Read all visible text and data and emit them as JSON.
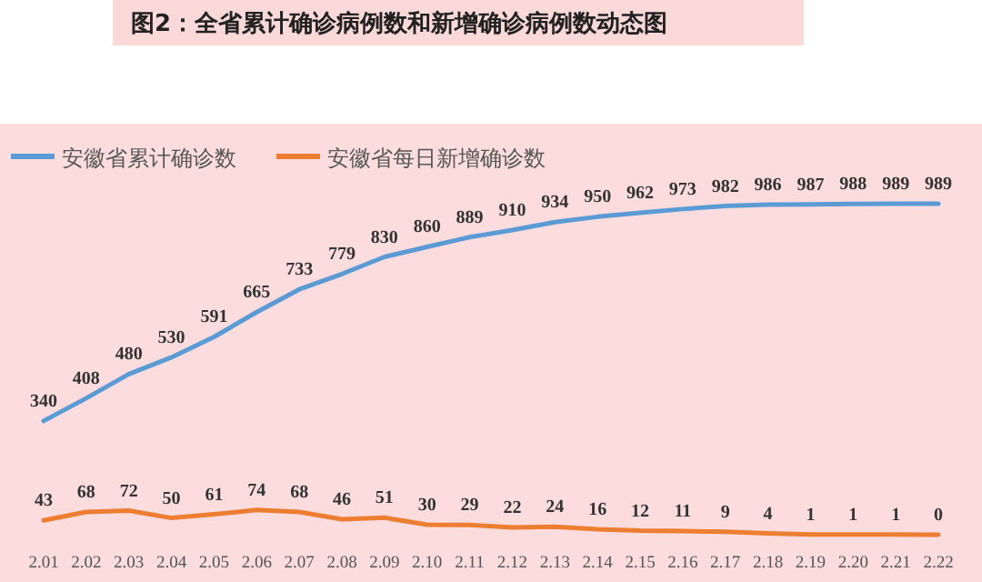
{
  "chart_data": {
    "type": "line",
    "title": "图2：全省累计确诊病例数和新增确诊病例数动态图",
    "categories": [
      "2.01",
      "2.02",
      "2.03",
      "2.04",
      "2.05",
      "2.06",
      "2.07",
      "2.08",
      "2.09",
      "2.10",
      "2.11",
      "2.12",
      "2.13",
      "2.14",
      "2.15",
      "2.16",
      "2.17",
      "2.18",
      "2.19",
      "2.20",
      "2.21",
      "2.22"
    ],
    "series": [
      {
        "name": "安徽省累计确诊数",
        "color": "#5b9bd5",
        "values": [
          340,
          408,
          480,
          530,
          591,
          665,
          733,
          779,
          830,
          860,
          889,
          910,
          934,
          950,
          962,
          973,
          982,
          986,
          987,
          988,
          989,
          989
        ]
      },
      {
        "name": "安徽省每日新增确诊数",
        "color": "#ed7d31",
        "values": [
          43,
          68,
          72,
          50,
          61,
          74,
          68,
          46,
          51,
          30,
          29,
          22,
          24,
          16,
          12,
          11,
          9,
          4,
          1,
          1,
          1,
          0
        ]
      }
    ],
    "data_labels": true,
    "legend": "top left"
  }
}
